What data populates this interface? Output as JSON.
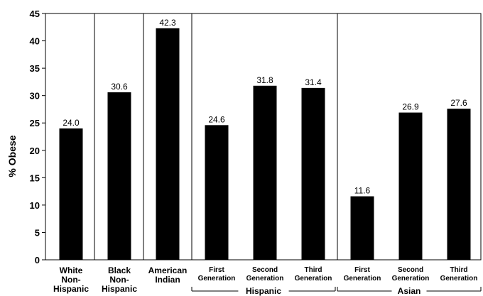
{
  "chart_data": {
    "type": "bar",
    "title": "",
    "xlabel": "",
    "ylabel": "% Obese",
    "ylim": [
      0,
      45
    ],
    "yticks": [
      0,
      5,
      10,
      15,
      20,
      25,
      30,
      35,
      40,
      45
    ],
    "grid": false,
    "categories": [
      "White Non-Hispanic",
      "Black Non-Hispanic",
      "American Indian",
      "First Generation",
      "Second Generation",
      "Third Generation",
      "First Generation",
      "Second Generation",
      "Third Generation"
    ],
    "category_lines": [
      [
        "White",
        "Non-",
        "Hispanic"
      ],
      [
        "Black",
        "Non-",
        "Hispanic"
      ],
      [
        "American",
        "Indian"
      ],
      [
        "First",
        "Generation"
      ],
      [
        "Second",
        "Generation"
      ],
      [
        "Third",
        "Generation"
      ],
      [
        "First",
        "Generation"
      ],
      [
        "Second",
        "Generation"
      ],
      [
        "Third",
        "Generation"
      ]
    ],
    "values": [
      24.0,
      30.6,
      42.3,
      24.6,
      31.8,
      31.4,
      11.6,
      26.9,
      27.6
    ],
    "value_labels": [
      "24.0",
      "30.6",
      "42.3",
      "24.6",
      "31.8",
      "31.4",
      "11.6",
      "26.9",
      "27.6"
    ],
    "groups": [
      {
        "label": "Hispanic",
        "start": 3,
        "end": 5
      },
      {
        "label": "Asian",
        "start": 6,
        "end": 8
      }
    ],
    "bar_color": "#000000"
  }
}
